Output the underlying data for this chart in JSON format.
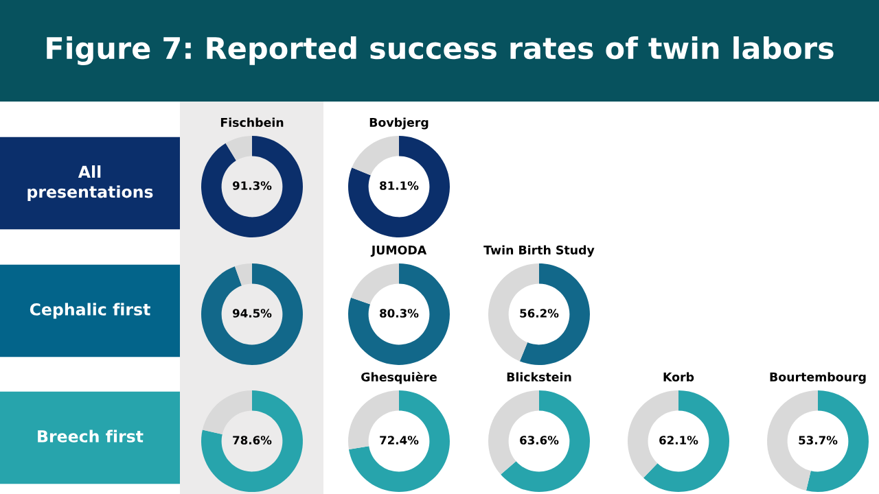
{
  "chart_data": [
    {
      "type": "other",
      "title": "Figure 7: Reported success rates of twin labors",
      "color": "#07525e"
    },
    {
      "type": "other",
      "title": "All presentations",
      "color": "#0b2f6b"
    },
    {
      "type": "donut",
      "title": "Fischbein",
      "categories": [
        null,
        null
      ],
      "values": [
        91.3,
        8.7
      ],
      "colors": [
        "#0b2f6b",
        "#d9d9d9"
      ],
      "value_labels": [
        "91.3%",
        null
      ]
    },
    {
      "type": "donut",
      "title": "Bovbjerg",
      "categories": [
        null,
        null
      ],
      "values": [
        81.1,
        18.9
      ],
      "colors": [
        "#0b2f6b",
        "#d9d9d9"
      ],
      "value_labels": [
        "81.1%",
        null
      ]
    },
    {
      "type": "other",
      "title": "Cephalic first",
      "color": "#03648a"
    },
    {
      "type": "donut",
      "categories": [
        null,
        null
      ],
      "values": [
        94.5,
        5.5
      ],
      "colors": [
        "#12688a",
        "#d9d9d9"
      ],
      "value_labels": [
        "94.5%",
        null
      ]
    },
    {
      "type": "donut",
      "title": "JUMODA",
      "categories": [
        null,
        null
      ],
      "values": [
        80.3,
        19.7
      ],
      "colors": [
        "#12688a",
        "#d9d9d9"
      ],
      "value_labels": [
        "80.3%",
        null
      ]
    },
    {
      "type": "donut",
      "title": "Twin Birth Study",
      "categories": [
        null,
        null
      ],
      "values": [
        56.2,
        43.8
      ],
      "colors": [
        "#12688a",
        "#d9d9d9"
      ],
      "value_labels": [
        "56.2%",
        null
      ]
    },
    {
      "type": "other",
      "title": "Breech first",
      "color": "#27a4ac"
    },
    {
      "type": "donut",
      "categories": [
        null,
        null
      ],
      "values": [
        78.6,
        21.4
      ],
      "colors": [
        "#27a4ac",
        "#d9d9d9"
      ],
      "value_labels": [
        "78.6%",
        null
      ]
    },
    {
      "type": "donut",
      "title": "Ghesquière",
      "categories": [
        null,
        null
      ],
      "values": [
        72.4,
        27.6
      ],
      "colors": [
        "#27a4ac",
        "#d9d9d9"
      ],
      "value_labels": [
        "72.4%",
        null
      ]
    },
    {
      "type": "donut",
      "title": "Blickstein",
      "categories": [
        null,
        null
      ],
      "values": [
        63.6,
        36.4
      ],
      "colors": [
        "#27a4ac",
        "#d9d9d9"
      ],
      "value_labels": [
        "63.6%",
        null
      ]
    },
    {
      "type": "donut",
      "title": "Korb",
      "categories": [
        null,
        null
      ],
      "values": [
        62.1,
        37.9
      ],
      "colors": [
        "#27a4ac",
        "#d9d9d9"
      ],
      "value_labels": [
        "62.1%",
        null
      ]
    },
    {
      "type": "donut",
      "title": "Bourtembourg",
      "categories": [
        null,
        null
      ],
      "values": [
        53.7,
        46.3
      ],
      "colors": [
        "#27a4ac",
        "#d9d9d9"
      ],
      "value_labels": [
        "53.7%",
        null
      ]
    }
  ]
}
